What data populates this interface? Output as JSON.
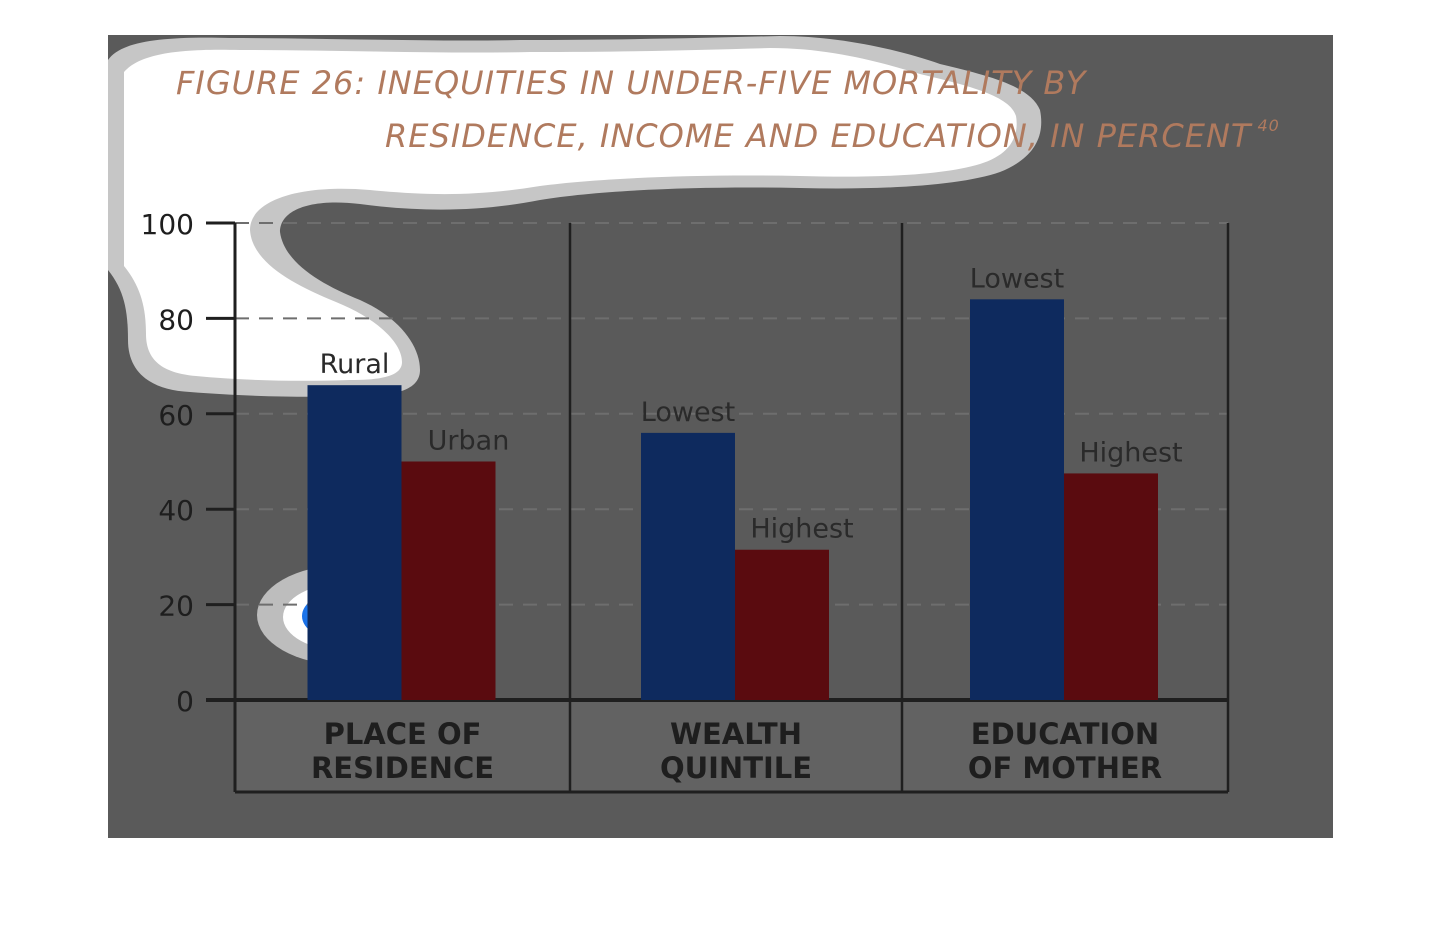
{
  "title": {
    "line1": "FIGURE 26: INEQUITIES IN UNDER-FIVE MORTALITY BY",
    "line2": "RESIDENCE, INCOME AND EDUCATION, IN PERCENT",
    "footnote": "40"
  },
  "colors": {
    "panel": "#5a5a5a",
    "title": "#b07a5e",
    "blue_bar": "#0e2a5e",
    "red_bar": "#5a0b0f",
    "axis": "#1f1f1f",
    "grid": "#6e6e6e",
    "group_band": "#626262",
    "tick_label": "#1e1e1e",
    "bar_label": "#2a2a2a"
  },
  "chart_data": {
    "type": "bar",
    "title": "FIGURE 26: INEQUITIES IN UNDER-FIVE MORTALITY BY RESIDENCE, INCOME AND EDUCATION, IN PERCENT",
    "ylim": [
      0,
      100
    ],
    "yticks": [
      "0",
      "20",
      "40",
      "60",
      "80",
      "100"
    ],
    "grid": true,
    "groups": [
      {
        "label_lines": [
          "PLACE OF",
          "RESIDENCE"
        ],
        "bars": [
          {
            "label": "Rural",
            "value": 66,
            "color": "blue"
          },
          {
            "label": "Urban",
            "value": 50,
            "color": "red"
          }
        ]
      },
      {
        "label_lines": [
          "WEALTH",
          "QUINTILE"
        ],
        "bars": [
          {
            "label": "Lowest",
            "value": 56,
            "color": "blue"
          },
          {
            "label": "Highest",
            "value": 31.5,
            "color": "red"
          }
        ]
      },
      {
        "label_lines": [
          "EDUCATION",
          "OF MOTHER"
        ],
        "bars": [
          {
            "label": "Lowest",
            "value": 84,
            "color": "blue"
          },
          {
            "label": "Highest",
            "value": 47.5,
            "color": "red"
          }
        ]
      }
    ]
  }
}
